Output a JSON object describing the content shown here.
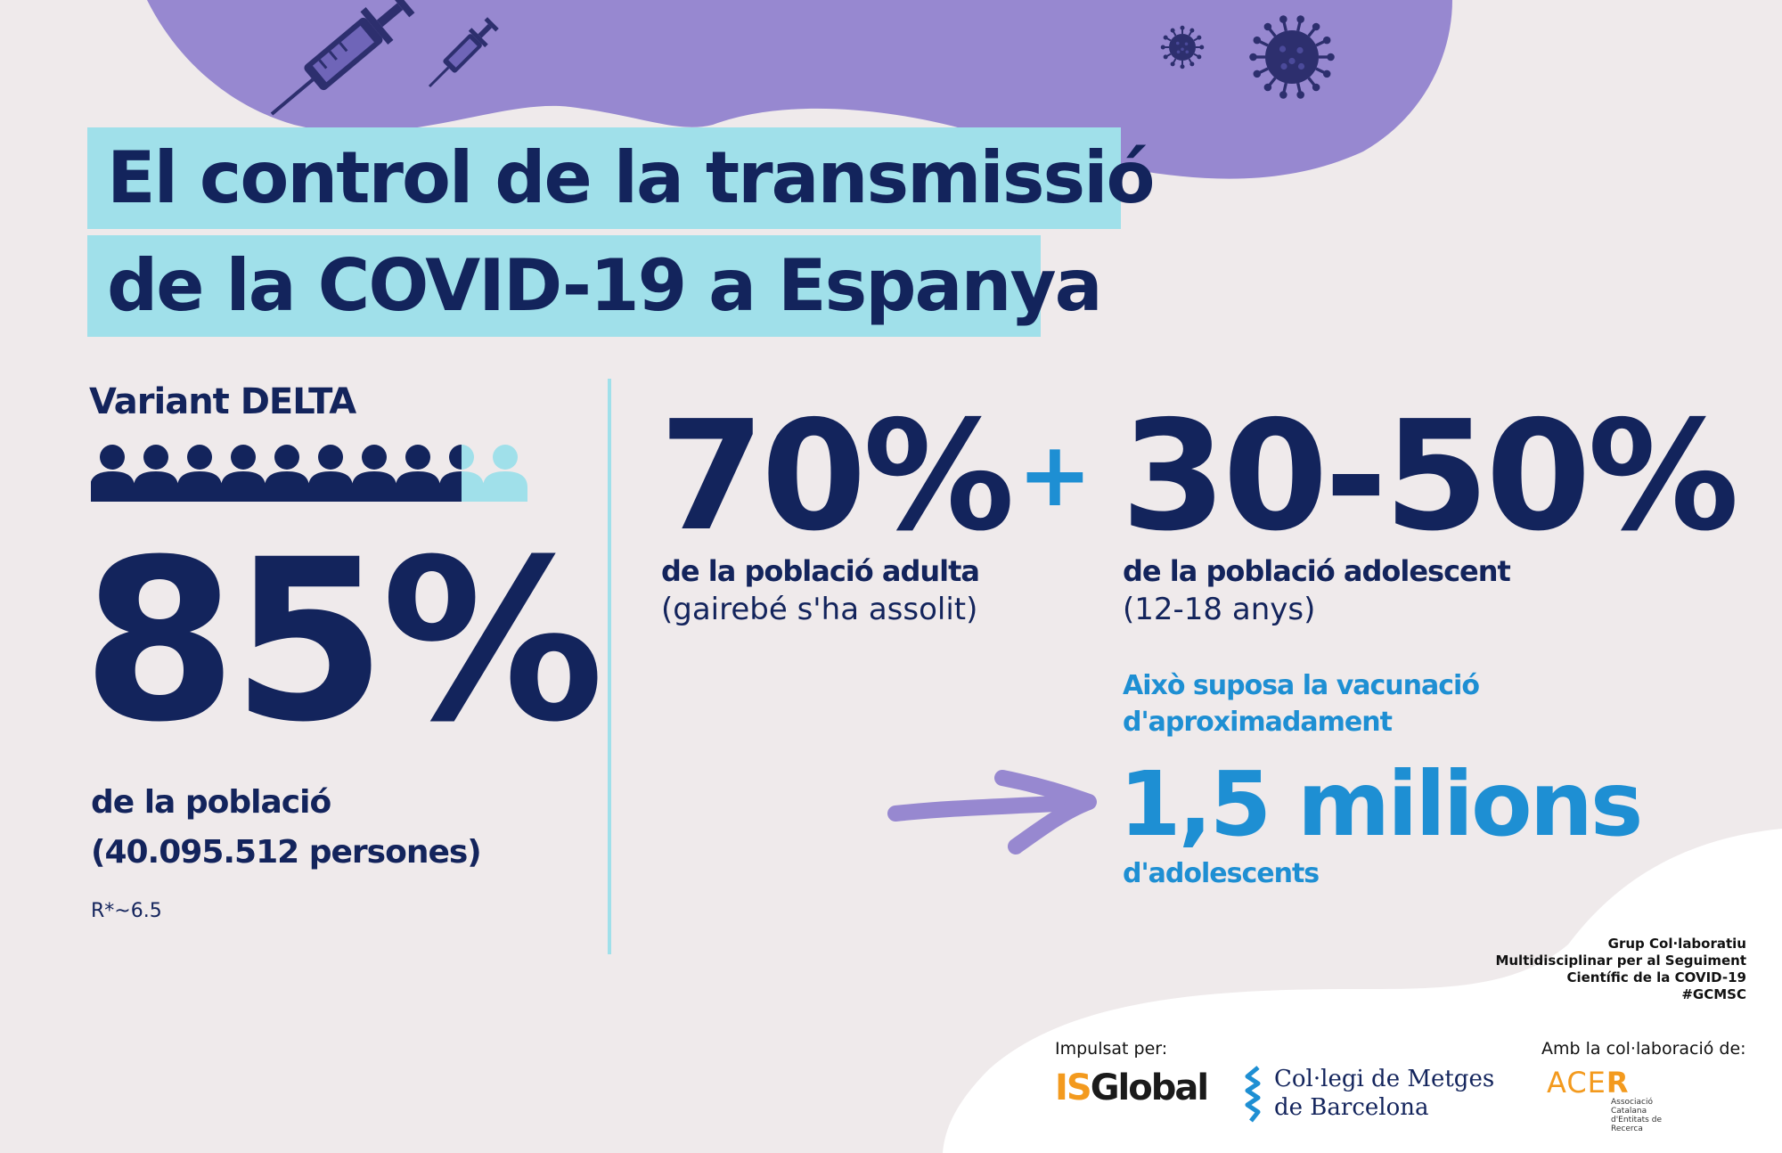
{
  "title": {
    "line1": "El control de la transmissió",
    "line2": "de la COVID-19 a Espanya"
  },
  "delta": {
    "label": "Variant DELTA",
    "percent": "85%",
    "population_label": "de la població",
    "population_count": "(40.095.512 persones)",
    "r_value": "R*~6.5",
    "people_icons_total": 10,
    "people_icons_filled": 8.5
  },
  "adult": {
    "percent": "70%",
    "label": "de la població adulta",
    "note": "(gairebé s'ha assolit)"
  },
  "plus": "+",
  "adolescent": {
    "percent": "30-50%",
    "label": "de la població adolescent",
    "note": "(12-18 anys)"
  },
  "implication": {
    "line1": "Això suposa la vacunació",
    "line2": "d'aproximadament",
    "big": "1,5 milions",
    "unit": "d'adolescents"
  },
  "credits": {
    "group_lines": [
      "Grup Col·laboratiu",
      "Multidisciplinar per al Seguiment",
      "Científic de la COVID-19",
      "#GCMSC"
    ],
    "promoted_by": "Impulsat per:",
    "collab_by": "Amb la col·laboració de:",
    "isglobal_prefix": "IS",
    "isglobal_suffix": "Global",
    "comb_line1": "Col·legi de Metges",
    "comb_line2": "de Barcelona",
    "acer_main_prefix": "ACE",
    "acer_main_suffix": "R",
    "acer_sub": "Associació Catalana d'Entitats de Recerca"
  },
  "colors": {
    "navy": "#13245c",
    "blue": "#1e8fd3",
    "cyan": "#a0e0ea",
    "purple": "#9788d0",
    "background": "#efeaeb",
    "white": "#ffffff",
    "orange": "#f39a1e"
  },
  "icons": [
    "syringe-icon",
    "virus-icon",
    "people-icon",
    "arrow-icon"
  ]
}
